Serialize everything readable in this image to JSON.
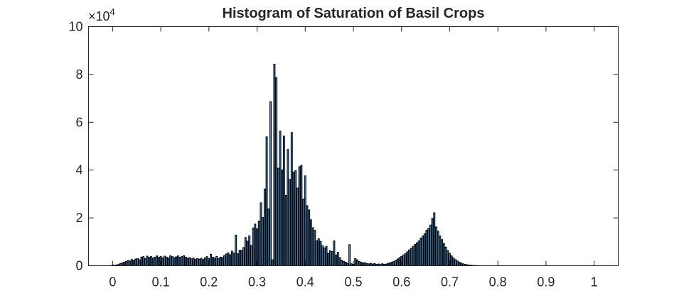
{
  "chart_data": {
    "type": "bar",
    "title": "Histogram of Saturation of Basil Crops",
    "xlabel": "",
    "ylabel": "",
    "xlim": [
      -0.05,
      1.05
    ],
    "ylim": [
      0,
      100000
    ],
    "y_multiplier_text": "×10",
    "y_multiplier_exponent": "4",
    "xticks": [
      0,
      0.1,
      0.2,
      0.3,
      0.4,
      0.5,
      0.6,
      0.7,
      0.8,
      0.9,
      1
    ],
    "xtick_labels": [
      "0",
      "0.1",
      "0.2",
      "0.3",
      "0.4",
      "0.5",
      "0.6",
      "0.7",
      "0.8",
      "0.9",
      "1"
    ],
    "yticks": [
      0,
      20000,
      40000,
      60000,
      80000,
      100000
    ],
    "ytick_labels": [
      "0",
      "2",
      "4",
      "6",
      "8",
      "10"
    ],
    "grid": false,
    "bar_color": "#4d8fc8",
    "bin_width": 0.0039,
    "points": [
      [
        0.0,
        300
      ],
      [
        0.004,
        200
      ],
      [
        0.008,
        300
      ],
      [
        0.012,
        500
      ],
      [
        0.016,
        900
      ],
      [
        0.02,
        1200
      ],
      [
        0.024,
        1500
      ],
      [
        0.028,
        1800
      ],
      [
        0.032,
        2200
      ],
      [
        0.036,
        2000
      ],
      [
        0.04,
        2600
      ],
      [
        0.044,
        2300
      ],
      [
        0.048,
        2800
      ],
      [
        0.052,
        3000
      ],
      [
        0.056,
        2500
      ],
      [
        0.06,
        3600
      ],
      [
        0.064,
        3800
      ],
      [
        0.068,
        3000
      ],
      [
        0.072,
        4000
      ],
      [
        0.076,
        3500
      ],
      [
        0.08,
        3800
      ],
      [
        0.084,
        3200
      ],
      [
        0.088,
        3600
      ],
      [
        0.092,
        4100
      ],
      [
        0.096,
        3500
      ],
      [
        0.1,
        3900
      ],
      [
        0.104,
        3300
      ],
      [
        0.108,
        4000
      ],
      [
        0.112,
        3600
      ],
      [
        0.116,
        3200
      ],
      [
        0.12,
        4200
      ],
      [
        0.124,
        3800
      ],
      [
        0.128,
        3400
      ],
      [
        0.132,
        3700
      ],
      [
        0.136,
        4100
      ],
      [
        0.14,
        3500
      ],
      [
        0.144,
        3900
      ],
      [
        0.148,
        4200
      ],
      [
        0.152,
        3600
      ],
      [
        0.156,
        3100
      ],
      [
        0.16,
        3400
      ],
      [
        0.164,
        2900
      ],
      [
        0.168,
        3200
      ],
      [
        0.172,
        2700
      ],
      [
        0.176,
        3000
      ],
      [
        0.18,
        2800
      ],
      [
        0.184,
        3100
      ],
      [
        0.188,
        2600
      ],
      [
        0.192,
        3300
      ],
      [
        0.196,
        3800
      ],
      [
        0.2,
        3000
      ],
      [
        0.204,
        4800
      ],
      [
        0.208,
        3600
      ],
      [
        0.212,
        3200
      ],
      [
        0.216,
        3900
      ],
      [
        0.22,
        3000
      ],
      [
        0.224,
        3600
      ],
      [
        0.228,
        3400
      ],
      [
        0.232,
        4200
      ],
      [
        0.236,
        4900
      ],
      [
        0.24,
        5400
      ],
      [
        0.244,
        4600
      ],
      [
        0.248,
        6100
      ],
      [
        0.252,
        5300
      ],
      [
        0.256,
        12800
      ],
      [
        0.26,
        5000
      ],
      [
        0.264,
        6500
      ],
      [
        0.268,
        6400
      ],
      [
        0.272,
        7600
      ],
      [
        0.276,
        11800
      ],
      [
        0.28,
        10300
      ],
      [
        0.284,
        12500
      ],
      [
        0.288,
        8500
      ],
      [
        0.292,
        15800
      ],
      [
        0.296,
        17400
      ],
      [
        0.3,
        15500
      ],
      [
        0.304,
        18700
      ],
      [
        0.308,
        26300
      ],
      [
        0.312,
        20200
      ],
      [
        0.316,
        32100
      ],
      [
        0.32,
        53900
      ],
      [
        0.324,
        23800
      ],
      [
        0.328,
        68600
      ],
      [
        0.332,
        2500
      ],
      [
        0.336,
        84300
      ],
      [
        0.34,
        78700
      ],
      [
        0.344,
        40800
      ],
      [
        0.348,
        56300
      ],
      [
        0.352,
        40100
      ],
      [
        0.356,
        54200
      ],
      [
        0.36,
        29400
      ],
      [
        0.364,
        48600
      ],
      [
        0.368,
        36100
      ],
      [
        0.372,
        55700
      ],
      [
        0.376,
        39200
      ],
      [
        0.38,
        39800
      ],
      [
        0.384,
        32500
      ],
      [
        0.388,
        41400
      ],
      [
        0.392,
        42000
      ],
      [
        0.396,
        27900
      ],
      [
        0.4,
        37600
      ],
      [
        0.404,
        25100
      ],
      [
        0.408,
        23300
      ],
      [
        0.412,
        19200
      ],
      [
        0.416,
        15900
      ],
      [
        0.42,
        14800
      ],
      [
        0.424,
        10500
      ],
      [
        0.428,
        11300
      ],
      [
        0.432,
        10200
      ],
      [
        0.436,
        8400
      ],
      [
        0.44,
        7500
      ],
      [
        0.444,
        8100
      ],
      [
        0.448,
        5200
      ],
      [
        0.452,
        6300
      ],
      [
        0.456,
        5900
      ],
      [
        0.46,
        10400
      ],
      [
        0.464,
        4500
      ],
      [
        0.468,
        5600
      ],
      [
        0.472,
        3400
      ],
      [
        0.476,
        2300
      ],
      [
        0.48,
        1800
      ],
      [
        0.484,
        1500
      ],
      [
        0.488,
        1000
      ],
      [
        0.492,
        8800
      ],
      [
        0.496,
        800
      ],
      [
        0.5,
        600
      ],
      [
        0.504,
        3000
      ],
      [
        0.508,
        2500
      ],
      [
        0.512,
        1800
      ],
      [
        0.516,
        1500
      ],
      [
        0.52,
        1200
      ],
      [
        0.524,
        1300
      ],
      [
        0.528,
        900
      ],
      [
        0.532,
        800
      ],
      [
        0.536,
        1000
      ],
      [
        0.54,
        700
      ],
      [
        0.544,
        900
      ],
      [
        0.548,
        600
      ],
      [
        0.552,
        700
      ],
      [
        0.556,
        500
      ],
      [
        0.56,
        800
      ],
      [
        0.564,
        600
      ],
      [
        0.568,
        700
      ],
      [
        0.572,
        1000
      ],
      [
        0.576,
        1200
      ],
      [
        0.58,
        1500
      ],
      [
        0.584,
        1800
      ],
      [
        0.588,
        2300
      ],
      [
        0.592,
        2800
      ],
      [
        0.596,
        3400
      ],
      [
        0.6,
        3900
      ],
      [
        0.604,
        4500
      ],
      [
        0.608,
        5100
      ],
      [
        0.612,
        5800
      ],
      [
        0.616,
        6600
      ],
      [
        0.62,
        7300
      ],
      [
        0.624,
        8100
      ],
      [
        0.628,
        8900
      ],
      [
        0.632,
        9600
      ],
      [
        0.636,
        10400
      ],
      [
        0.64,
        11600
      ],
      [
        0.644,
        12500
      ],
      [
        0.648,
        13400
      ],
      [
        0.652,
        14800
      ],
      [
        0.656,
        15600
      ],
      [
        0.66,
        17000
      ],
      [
        0.664,
        19800
      ],
      [
        0.668,
        22100
      ],
      [
        0.672,
        16200
      ],
      [
        0.676,
        14500
      ],
      [
        0.68,
        12400
      ],
      [
        0.684,
        10900
      ],
      [
        0.688,
        9300
      ],
      [
        0.692,
        7800
      ],
      [
        0.696,
        6400
      ],
      [
        0.7,
        5200
      ],
      [
        0.704,
        4100
      ],
      [
        0.708,
        3300
      ],
      [
        0.712,
        2600
      ],
      [
        0.716,
        2000
      ],
      [
        0.72,
        1500
      ],
      [
        0.724,
        1100
      ],
      [
        0.728,
        800
      ],
      [
        0.732,
        600
      ],
      [
        0.736,
        400
      ],
      [
        0.74,
        300
      ],
      [
        0.744,
        200
      ],
      [
        0.748,
        150
      ],
      [
        0.752,
        100
      ],
      [
        0.756,
        80
      ]
    ]
  }
}
